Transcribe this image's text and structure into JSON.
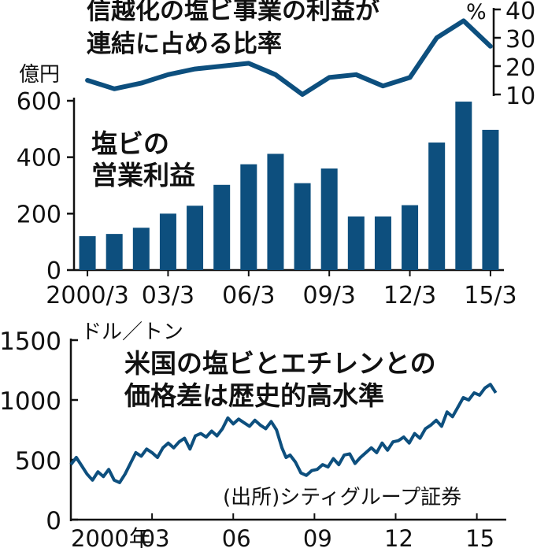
{
  "colors": {
    "series": "#0d4f7e",
    "axis": "#111111",
    "text": "#111111"
  },
  "chart_data": [
    {
      "type": "bar",
      "title": "塩ビの営業利益",
      "title_lines": [
        "塩ビの",
        "営業利益"
      ],
      "ylabel": "億円",
      "ylim": [
        0,
        600
      ],
      "yticks": [
        0,
        200,
        400,
        600
      ],
      "categories": [
        "2000/3",
        "01/3",
        "02/3",
        "03/3",
        "04/3",
        "05/3",
        "06/3",
        "07/3",
        "08/3",
        "09/3",
        "10/3",
        "11/3",
        "12/3",
        "13/3",
        "14/3",
        "15/3"
      ],
      "xtick_labels": [
        {
          "index": 0,
          "label": "2000/3"
        },
        {
          "index": 3,
          "label": "03/3"
        },
        {
          "index": 6,
          "label": "06/3"
        },
        {
          "index": 9,
          "label": "09/3"
        },
        {
          "index": 12,
          "label": "12/3"
        },
        {
          "index": 15,
          "label": "15/3"
        }
      ],
      "values": [
        120,
        128,
        150,
        200,
        228,
        302,
        375,
        412,
        308,
        360,
        190,
        190,
        230,
        452,
        597,
        497
      ]
    },
    {
      "type": "line",
      "title": "信越化の塩ビ事業の利益が連結に占める比率",
      "title_lines": [
        "信越化の塩ビ事業の利益が",
        "連結に占める比率"
      ],
      "ylabel": "%",
      "ylim": [
        10,
        40
      ],
      "yticks": [
        10,
        20,
        30,
        40
      ],
      "x": [
        "2000/3",
        "01/3",
        "02/3",
        "03/3",
        "04/3",
        "05/3",
        "06/3",
        "07/3",
        "08/3",
        "09/3",
        "10/3",
        "11/3",
        "12/3",
        "13/3",
        "14/3",
        "15/3"
      ],
      "values": [
        15,
        12,
        14,
        17,
        19,
        20,
        21,
        17,
        10,
        16,
        17,
        13,
        16,
        30,
        36,
        27
      ]
    },
    {
      "type": "line",
      "title": "米国の塩ビとエチレンとの価格差は歴史的高水準",
      "title_lines": [
        "米国の塩ビとエチレンとの",
        "価格差は歴史的高水準"
      ],
      "ylabel": "ドル／トン",
      "ylim": [
        0,
        1500
      ],
      "yticks": [
        0,
        500,
        1000,
        1500
      ],
      "x_labels": [
        "2000年",
        "03",
        "06",
        "09",
        "12",
        "15"
      ],
      "x_label_years": [
        2000,
        2003,
        2006,
        2009,
        2012,
        2015
      ],
      "x_range": [
        2000,
        2016
      ],
      "source": "(出所)シティグループ証券",
      "x": [
        2000.0,
        2000.2,
        2000.4,
        2000.6,
        2000.8,
        2001.0,
        2001.2,
        2001.4,
        2001.6,
        2001.8,
        2002.0,
        2002.2,
        2002.4,
        2002.6,
        2002.8,
        2003.0,
        2003.2,
        2003.4,
        2003.6,
        2003.8,
        2004.0,
        2004.2,
        2004.4,
        2004.6,
        2004.8,
        2005.0,
        2005.2,
        2005.4,
        2005.6,
        2005.8,
        2006.0,
        2006.2,
        2006.4,
        2006.6,
        2006.8,
        2007.0,
        2007.2,
        2007.4,
        2007.6,
        2007.8,
        2007.95,
        2008.1,
        2008.3,
        2008.5,
        2008.7,
        2008.9,
        2009.1,
        2009.3,
        2009.5,
        2009.7,
        2009.9,
        2010.1,
        2010.3,
        2010.5,
        2010.7,
        2010.9,
        2011.1,
        2011.3,
        2011.5,
        2011.7,
        2011.9,
        2012.1,
        2012.3,
        2012.5,
        2012.7,
        2012.9,
        2013.1,
        2013.3,
        2013.5,
        2013.7,
        2013.9,
        2014.1,
        2014.3,
        2014.5,
        2014.7,
        2014.9,
        2015.1,
        2015.3,
        2015.5,
        2015.7
      ],
      "values": [
        460,
        520,
        450,
        380,
        330,
        400,
        360,
        420,
        330,
        310,
        380,
        470,
        560,
        530,
        590,
        560,
        520,
        600,
        640,
        600,
        650,
        680,
        590,
        700,
        720,
        690,
        740,
        700,
        760,
        850,
        800,
        840,
        810,
        780,
        830,
        790,
        760,
        820,
        750,
        600,
        520,
        540,
        480,
        390,
        370,
        410,
        420,
        460,
        440,
        510,
        460,
        540,
        550,
        470,
        520,
        560,
        600,
        560,
        640,
        580,
        650,
        660,
        690,
        640,
        720,
        680,
        760,
        790,
        830,
        780,
        900,
        860,
        940,
        1020,
        1000,
        1060,
        1040,
        1100,
        1130,
        1060
      ]
    }
  ]
}
